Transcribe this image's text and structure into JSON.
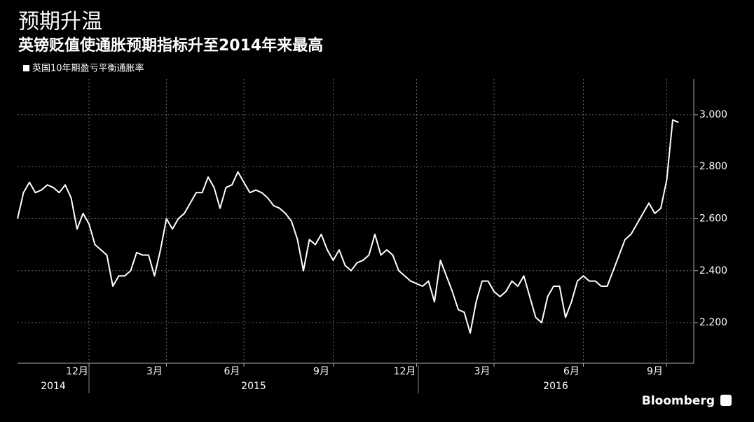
{
  "chart_data": {
    "type": "line",
    "title": "预期升温",
    "subtitle": "英镑贬值使通胀预期指标升至2014年来最高",
    "source": "Bloomberg",
    "categories": [
      null,
      null,
      null,
      null,
      null,
      null,
      null,
      null,
      null,
      null,
      "12月",
      null,
      null,
      null,
      null,
      null,
      null,
      null,
      null,
      null,
      null,
      null,
      null,
      "3月",
      null,
      null,
      null,
      null,
      null,
      null,
      null,
      null,
      null,
      null,
      null,
      null,
      "6月",
      null,
      null,
      null,
      null,
      null,
      null,
      null,
      null,
      null,
      null,
      null,
      null,
      null,
      null,
      "9月",
      null,
      null,
      null,
      null,
      null,
      null,
      null,
      null,
      null,
      null,
      null,
      null,
      null,
      "12月",
      null,
      null,
      null,
      null,
      null,
      null,
      null,
      null,
      null,
      null,
      null,
      null,
      "3月",
      null,
      null,
      null,
      null,
      null,
      null,
      null,
      null,
      null,
      null,
      null,
      null,
      null,
      null,
      "6月",
      null,
      null,
      null,
      null,
      null,
      null,
      null,
      null,
      null,
      null,
      null,
      null,
      null,
      "9月",
      null,
      null,
      null,
      null
    ],
    "x_groups": [
      "2014",
      "2015",
      "2016"
    ],
    "series": [
      {
        "name": "英国10年期盈亏平衡通胀率",
        "color": "#ffffff",
        "values": [
          2.6,
          2.7,
          2.74,
          2.7,
          2.71,
          2.73,
          2.72,
          2.7,
          2.73,
          2.68,
          2.56,
          2.62,
          2.58,
          2.5,
          2.48,
          2.46,
          2.34,
          2.38,
          2.38,
          2.4,
          2.47,
          2.46,
          2.46,
          2.38,
          2.48,
          2.6,
          2.56,
          2.6,
          2.62,
          2.66,
          2.7,
          2.7,
          2.76,
          2.72,
          2.64,
          2.72,
          2.73,
          2.78,
          2.74,
          2.7,
          2.71,
          2.7,
          2.68,
          2.65,
          2.64,
          2.62,
          2.59,
          2.52,
          2.4,
          2.52,
          2.5,
          2.54,
          2.48,
          2.44,
          2.48,
          2.42,
          2.4,
          2.43,
          2.44,
          2.46,
          2.54,
          2.46,
          2.48,
          2.46,
          2.4,
          2.38,
          2.36,
          2.35,
          2.34,
          2.36,
          2.28,
          2.44,
          2.38,
          2.32,
          2.25,
          2.24,
          2.16,
          2.28,
          2.36,
          2.36,
          2.32,
          2.3,
          2.32,
          2.36,
          2.34,
          2.38,
          2.3,
          2.22,
          2.2,
          2.3,
          2.34,
          2.34,
          2.22,
          2.28,
          2.36,
          2.38,
          2.36,
          2.36,
          2.34,
          2.34,
          2.4,
          2.46,
          2.52,
          2.54,
          2.58,
          2.62,
          2.66,
          2.62,
          2.64,
          2.75,
          2.98,
          2.97
        ]
      }
    ],
    "ylim": [
      2.044,
      3.137
    ],
    "yticks": [
      {
        "value": 2.2,
        "label": "2.200"
      },
      {
        "value": 2.4,
        "label": "2.400"
      },
      {
        "value": 2.6,
        "label": "2.600"
      },
      {
        "value": 2.8,
        "label": "2.800"
      },
      {
        "value": 3.0,
        "label": "3.000"
      }
    ],
    "grid": true
  }
}
